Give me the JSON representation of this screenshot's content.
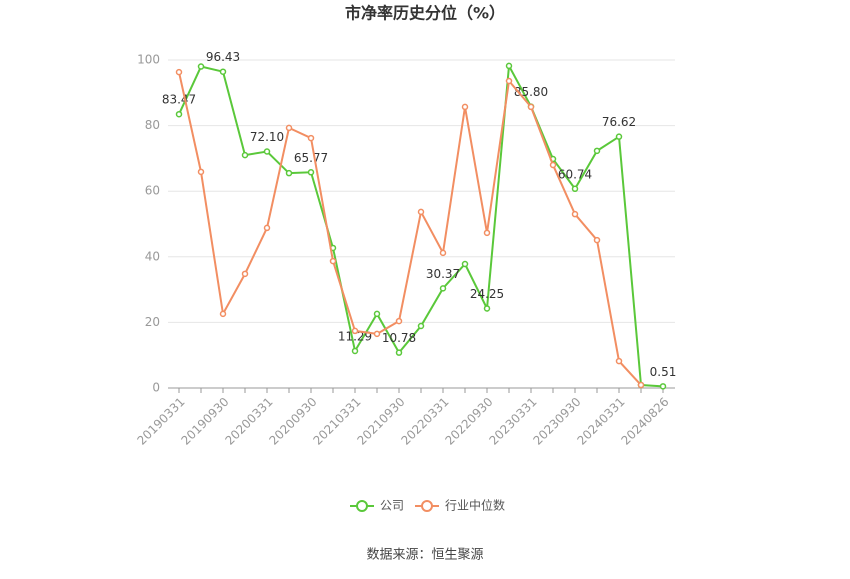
{
  "chart_data": {
    "type": "line",
    "title": "市净率历史分位（%）",
    "source": "数据来源：恒生聚源",
    "categories": [
      "20190331",
      null,
      "20190930",
      null,
      "20200331",
      null,
      "20200930",
      null,
      "20210331",
      null,
      "20210930",
      null,
      "20220331",
      null,
      "20220930",
      null,
      "20230331",
      null,
      "20230930",
      null,
      "20240331",
      null,
      "20240826"
    ],
    "series": [
      {
        "name": "公司",
        "color": "#5ac83a",
        "values": [
          83.47,
          98,
          96.43,
          71,
          72.1,
          65.5,
          65.77,
          42.7,
          11.29,
          22.6,
          10.78,
          18.9,
          30.37,
          37.8,
          24.25,
          98.2,
          85.8,
          69.8,
          60.74,
          72.3,
          76.62,
          0.9,
          0.51
        ],
        "value_labels": [
          "83.47",
          null,
          "96.43",
          null,
          "72.10",
          null,
          "65.77",
          null,
          "11.29",
          null,
          "10.78",
          null,
          "30.37",
          null,
          "24.25",
          null,
          "85.80",
          null,
          "60.74",
          null,
          "76.62",
          null,
          "0.51"
        ]
      },
      {
        "name": "行业中位数",
        "color": "#f28e62",
        "values": [
          96.3,
          65.9,
          22.6,
          34.8,
          48.8,
          79.3,
          76.2,
          38.7,
          17.4,
          16.5,
          20.4,
          53.7,
          41.2,
          85.7,
          47.3,
          93.6,
          85.7,
          68.0,
          53.0,
          45.1,
          8.2,
          0.9,
          null
        ]
      }
    ],
    "ylim": [
      0,
      100
    ],
    "yticks": [
      0,
      20,
      40,
      60,
      80,
      100
    ],
    "grid": true,
    "legend": "bottom"
  }
}
